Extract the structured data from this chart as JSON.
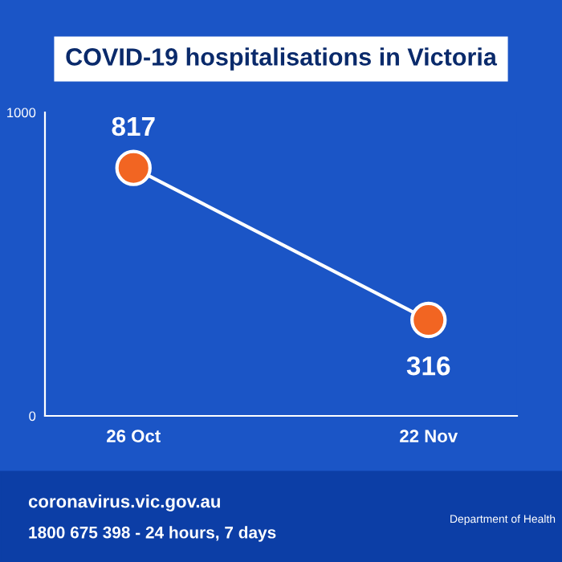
{
  "chart_data": {
    "type": "line",
    "title": "COVID-19 hospitalisations in Victoria",
    "categories": [
      "26 Oct",
      "22 Nov"
    ],
    "series": [
      {
        "color": "#ffffff",
        "values": [
          817,
          316
        ]
      }
    ],
    "ylim": [
      0,
      1000
    ],
    "yticks": [
      0,
      1000
    ],
    "marker": "circle",
    "data_labels": true,
    "grid": false,
    "annotations": [
      "coronavirus.vic.gov.au",
      "1800 675 398 - 24 hours, 7 days",
      "Department of Health"
    ]
  }
}
